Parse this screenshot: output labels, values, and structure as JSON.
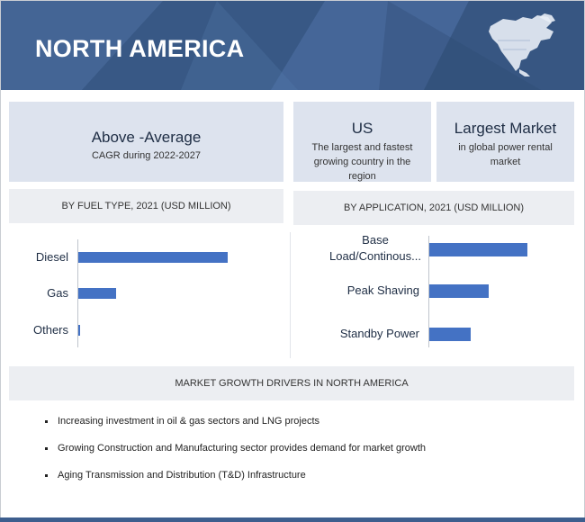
{
  "header": {
    "title": "NORTH AMERICA",
    "map_icon": "north-america-map-icon"
  },
  "highlights": [
    {
      "big": "Above -Average",
      "small": "CAGR during 2022-2027"
    },
    {
      "big": "US",
      "small": "The largest and fastest growing country in the region"
    },
    {
      "big": "Largest Market",
      "small": "in global power rental market"
    }
  ],
  "colors": {
    "header": "#3d5e8e",
    "bar": "#4472c4",
    "panel": "#dde3ee"
  },
  "chart_data": [
    {
      "type": "bar",
      "orientation": "horizontal",
      "title": "BY FUEL TYPE, 2021 (USD MILLION)",
      "categories": [
        "Diesel",
        "Gas",
        "Others"
      ],
      "values": [
        100,
        25,
        1.5
      ]
    },
    {
      "type": "bar",
      "orientation": "horizontal",
      "title": "BY APPLICATION, 2021 (USD MILLION)",
      "categories": [
        "Base Load/Continous...",
        "Peak Shaving",
        "Standby Power"
      ],
      "values": [
        100,
        61,
        42
      ]
    }
  ],
  "drivers": {
    "title": "MARKET GROWTH DRIVERS IN NORTH AMERICA",
    "items": [
      "Increasing investment in oil & gas sectors and LNG projects",
      "Growing Construction and Manufacturing sector provides demand for market growth",
      "Aging Transmission and Distribution (T&D) Infrastructure"
    ]
  }
}
